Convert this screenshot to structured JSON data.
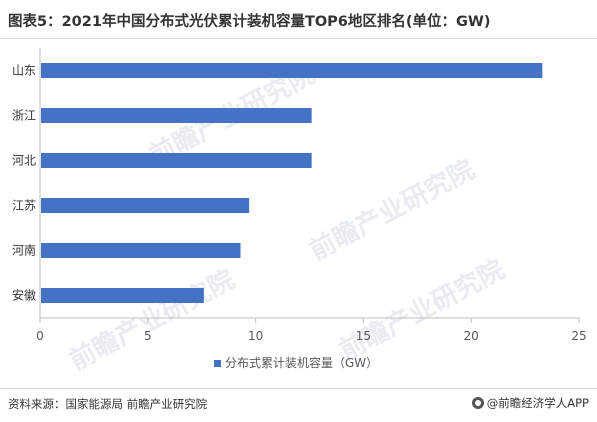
{
  "title": "图表5：2021年中国分布式光伏累计装机容量TOP6地区排名(单位：GW)",
  "footer": {
    "source": "资料来源：国家能源局 前瞻产业研究院",
    "brand": "@前瞻经济学人APP"
  },
  "watermark": "前瞻产业研究院",
  "colors": {
    "bar": "#4472c4",
    "axis": "#bfbfbf",
    "text": "#595959"
  },
  "chart_data": {
    "type": "bar",
    "orientation": "horizontal",
    "categories": [
      "山东",
      "浙江",
      "河北",
      "江苏",
      "河南",
      "安徽"
    ],
    "series": [
      {
        "name": "分布式累计装机容量（GW）",
        "values": [
          23.3,
          12.6,
          12.6,
          9.7,
          9.3,
          7.6
        ]
      }
    ],
    "xlim": [
      0,
      25
    ],
    "xticks": [
      0,
      5,
      10,
      15,
      20,
      25
    ],
    "grid": false,
    "legend": "bottom-center"
  }
}
